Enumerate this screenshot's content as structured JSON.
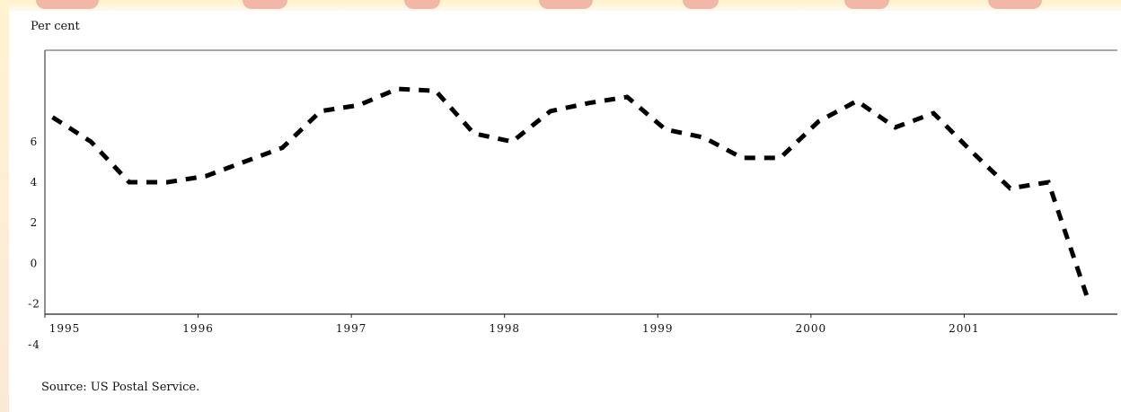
{
  "chart_data": {
    "type": "line",
    "ylabel": "Per cent",
    "source": "Source: US Postal Service.",
    "line_style": "dashed",
    "line_color": "#000000",
    "ylim": [
      -2.5,
      10.5
    ],
    "y_ticks": [
      6,
      4,
      2,
      0,
      -2,
      -4
    ],
    "x_ticks": [
      "1995",
      "1996",
      "1997",
      "1998",
      "1999",
      "2000",
      "2001"
    ],
    "x_tick_positions": [
      1995.0,
      1996.0,
      1997.0,
      1998.0,
      1999.0,
      2000.0,
      2001.0
    ],
    "xlim": [
      1995.0,
      2002.0
    ],
    "series": [
      {
        "points": [
          [
            1995.05,
            7.2
          ],
          [
            1995.3,
            6.0
          ],
          [
            1995.55,
            4.0
          ],
          [
            1995.8,
            4.0
          ],
          [
            1996.05,
            4.3
          ],
          [
            1996.3,
            5.0
          ],
          [
            1996.55,
            5.7
          ],
          [
            1996.8,
            7.5
          ],
          [
            1997.05,
            7.8
          ],
          [
            1997.3,
            8.6
          ],
          [
            1997.55,
            8.5
          ],
          [
            1997.8,
            6.4
          ],
          [
            1998.05,
            6.0
          ],
          [
            1998.3,
            7.5
          ],
          [
            1998.55,
            7.9
          ],
          [
            1998.8,
            8.2
          ],
          [
            1999.05,
            6.6
          ],
          [
            1999.3,
            6.2
          ],
          [
            1999.55,
            5.2
          ],
          [
            1999.8,
            5.2
          ],
          [
            2000.05,
            7.0
          ],
          [
            2000.3,
            8.0
          ],
          [
            2000.55,
            6.7
          ],
          [
            2000.8,
            7.4
          ],
          [
            2001.05,
            5.5
          ],
          [
            2001.3,
            3.7
          ],
          [
            2001.55,
            4.0
          ],
          [
            2001.8,
            -1.6
          ]
        ]
      }
    ]
  }
}
